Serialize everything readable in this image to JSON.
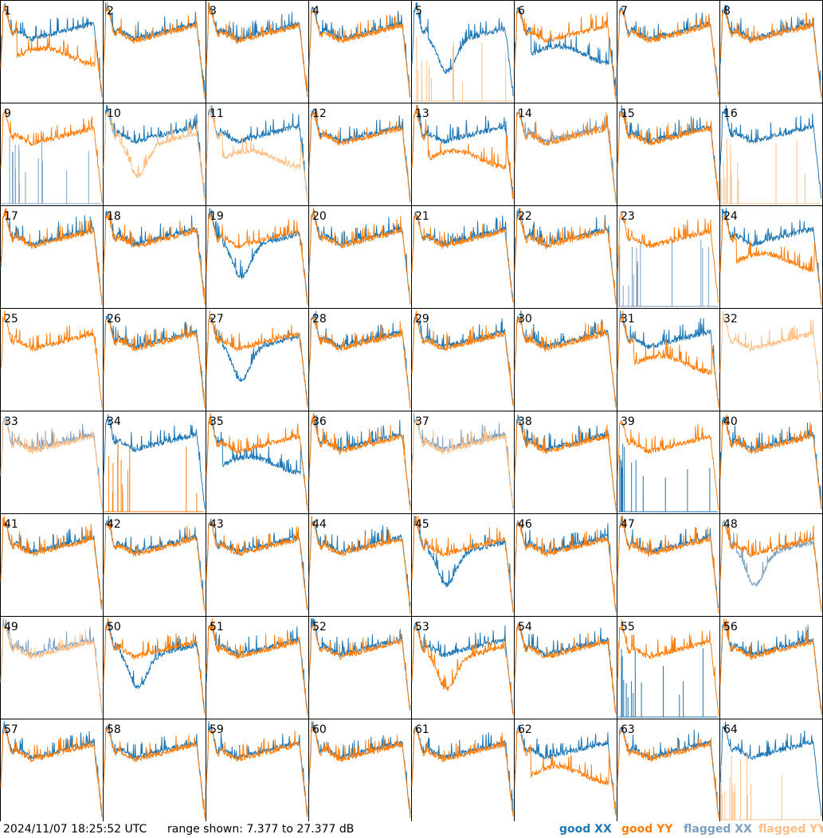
{
  "footer": {
    "timestamp": "2024/11/07 18:25:52 UTC",
    "range_text": "range shown: 7.377 to 27.377 dB"
  },
  "legend": [
    {
      "key": "good_xx",
      "label": "good XX",
      "color": "#1f77b4"
    },
    {
      "key": "good_yy",
      "label": "good YY",
      "color": "#ff7f0e"
    },
    {
      "key": "flagged_xx",
      "label": "flagged XX",
      "color": "#7f9fbf"
    },
    {
      "key": "flagged_yy",
      "label": "flagged YY",
      "color": "#ffbf87"
    }
  ],
  "chart_data": {
    "type": "line",
    "layout": "small-multiples 8x8",
    "y_range_db": [
      7.377,
      27.377
    ],
    "grid": false,
    "legend_position": "bottom-right",
    "panels": [
      {
        "id": "1",
        "xx": "good",
        "yy": "good",
        "yy_shape": "low"
      },
      {
        "id": "2",
        "xx": "good",
        "yy": "good"
      },
      {
        "id": "3",
        "xx": "good",
        "yy": "good"
      },
      {
        "id": "4",
        "xx": "good",
        "yy": "good"
      },
      {
        "id": "5",
        "xx": "good",
        "yy": "flagged",
        "yy_shape": "spikes",
        "xx_shape": "dip"
      },
      {
        "id": "6",
        "xx": "good",
        "yy": "good",
        "xx_shape": "low"
      },
      {
        "id": "7",
        "xx": "good",
        "yy": "good"
      },
      {
        "id": "8",
        "xx": "good",
        "yy": "good"
      },
      {
        "id": "9",
        "xx": "flagged",
        "yy": "good",
        "xx_shape": "spikes"
      },
      {
        "id": "10",
        "xx": "good",
        "yy": "flagged",
        "yy_shape": "dip"
      },
      {
        "id": "11",
        "xx": "good",
        "yy": "flagged",
        "yy_shape": "low"
      },
      {
        "id": "12",
        "xx": "good",
        "yy": "good"
      },
      {
        "id": "13",
        "xx": "good",
        "yy": "good",
        "yy_shape": "low"
      },
      {
        "id": "14",
        "xx": "flagged",
        "yy": "good"
      },
      {
        "id": "15",
        "xx": "good",
        "yy": "good"
      },
      {
        "id": "16",
        "xx": "good",
        "yy": "flagged",
        "yy_shape": "spikes"
      },
      {
        "id": "17",
        "xx": "good",
        "yy": "good"
      },
      {
        "id": "18",
        "xx": "good",
        "yy": "good"
      },
      {
        "id": "19",
        "xx": "good",
        "yy": "good",
        "xx_shape": "dip"
      },
      {
        "id": "20",
        "xx": "good",
        "yy": "good"
      },
      {
        "id": "21",
        "xx": "good",
        "yy": "good"
      },
      {
        "id": "22",
        "xx": "good",
        "yy": "good"
      },
      {
        "id": "23",
        "xx": "flagged",
        "yy": "good",
        "xx_shape": "spikes"
      },
      {
        "id": "24",
        "xx": "good",
        "yy": "good",
        "yy_shape": "low"
      },
      {
        "id": "25",
        "xx": "none",
        "yy": "good"
      },
      {
        "id": "26",
        "xx": "good",
        "yy": "good"
      },
      {
        "id": "27",
        "xx": "good",
        "yy": "good",
        "xx_shape": "dip"
      },
      {
        "id": "28",
        "xx": "good",
        "yy": "good"
      },
      {
        "id": "29",
        "xx": "good",
        "yy": "good"
      },
      {
        "id": "30",
        "xx": "good",
        "yy": "good"
      },
      {
        "id": "31",
        "xx": "good",
        "yy": "good",
        "yy_shape": "low"
      },
      {
        "id": "32",
        "xx": "none",
        "yy": "flagged"
      },
      {
        "id": "33",
        "xx": "flagged",
        "yy": "flagged"
      },
      {
        "id": "34",
        "xx": "good",
        "yy": "good",
        "yy_shape": "spikes"
      },
      {
        "id": "35",
        "xx": "good",
        "yy": "good",
        "xx_shape": "low"
      },
      {
        "id": "36",
        "xx": "good",
        "yy": "good"
      },
      {
        "id": "37",
        "xx": "flagged",
        "yy": "flagged"
      },
      {
        "id": "38",
        "xx": "good",
        "yy": "good"
      },
      {
        "id": "39",
        "xx": "good",
        "yy": "good",
        "xx_shape": "spikes"
      },
      {
        "id": "40",
        "xx": "good",
        "yy": "good"
      },
      {
        "id": "41",
        "xx": "good",
        "yy": "good"
      },
      {
        "id": "42",
        "xx": "good",
        "yy": "good"
      },
      {
        "id": "43",
        "xx": "good",
        "yy": "good"
      },
      {
        "id": "44",
        "xx": "good",
        "yy": "good"
      },
      {
        "id": "45",
        "xx": "good",
        "yy": "good",
        "xx_shape": "dip"
      },
      {
        "id": "46",
        "xx": "good",
        "yy": "good"
      },
      {
        "id": "47",
        "xx": "good",
        "yy": "good"
      },
      {
        "id": "48",
        "xx": "flagged",
        "yy": "good",
        "xx_shape": "dip"
      },
      {
        "id": "49",
        "xx": "flagged",
        "yy": "flagged"
      },
      {
        "id": "50",
        "xx": "good",
        "yy": "good",
        "xx_shape": "dip"
      },
      {
        "id": "51",
        "xx": "good",
        "yy": "good"
      },
      {
        "id": "52",
        "xx": "good",
        "yy": "good"
      },
      {
        "id": "53",
        "xx": "good",
        "yy": "good",
        "yy_shape": "dip"
      },
      {
        "id": "54",
        "xx": "good",
        "yy": "good"
      },
      {
        "id": "55",
        "xx": "good",
        "yy": "good",
        "xx_shape": "spikes"
      },
      {
        "id": "56",
        "xx": "good",
        "yy": "good"
      },
      {
        "id": "57",
        "xx": "good",
        "yy": "good"
      },
      {
        "id": "58",
        "xx": "good",
        "yy": "good"
      },
      {
        "id": "59",
        "xx": "good",
        "yy": "good"
      },
      {
        "id": "60",
        "xx": "good",
        "yy": "good"
      },
      {
        "id": "61",
        "xx": "good",
        "yy": "good"
      },
      {
        "id": "62",
        "xx": "good",
        "yy": "good",
        "yy_shape": "low"
      },
      {
        "id": "63",
        "xx": "good",
        "yy": "good"
      },
      {
        "id": "64",
        "xx": "good",
        "yy": "flagged",
        "yy_shape": "spikes"
      }
    ]
  }
}
